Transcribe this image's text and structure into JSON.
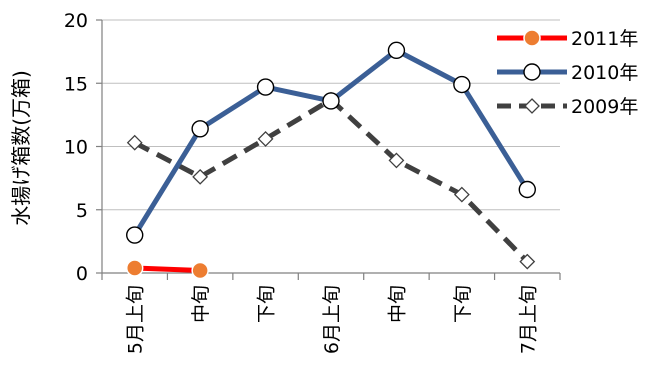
{
  "chart_data": {
    "type": "line",
    "title": "",
    "xlabel": "",
    "ylabel": "水揚げ箱数(万箱)",
    "ylim": [
      0,
      20
    ],
    "yticks": [
      0,
      5,
      10,
      15,
      20
    ],
    "grid": "horizontal",
    "legend_position": "top-right",
    "categories": [
      "5月上旬",
      "中旬",
      "下旬",
      "6月上旬",
      "中旬",
      "下旬",
      "7月上旬"
    ],
    "series": [
      {
        "name": "2011年",
        "values": [
          0.4,
          0.2,
          null,
          null,
          null,
          null,
          null
        ],
        "color": "#ff0000",
        "marker": "circle-filled",
        "marker_fill": "#ed7d31",
        "dash": "solid"
      },
      {
        "name": "2010年",
        "values": [
          3.0,
          11.4,
          14.7,
          13.6,
          17.6,
          14.9,
          6.6
        ],
        "color": "#3b5f96",
        "marker": "circle-open",
        "marker_fill": "#ffffff",
        "dash": "solid"
      },
      {
        "name": "2009年",
        "values": [
          10.3,
          7.6,
          10.6,
          13.7,
          8.9,
          6.2,
          0.9
        ],
        "color": "#404040",
        "marker": "diamond-open",
        "marker_fill": "#ffffff",
        "dash": "dashed"
      }
    ]
  }
}
